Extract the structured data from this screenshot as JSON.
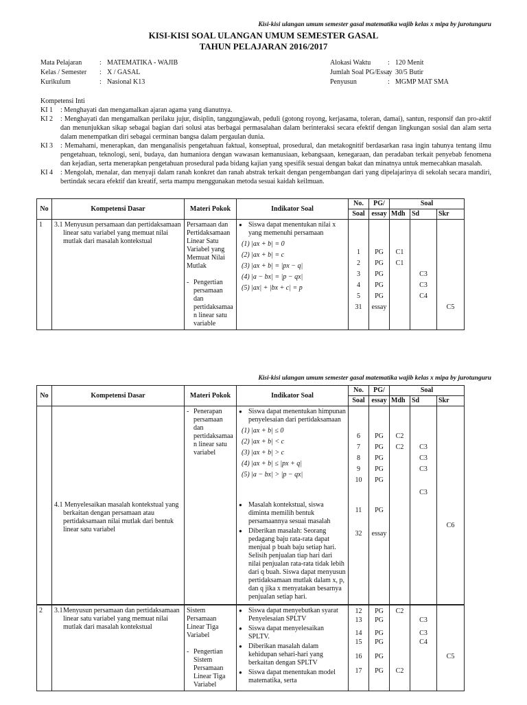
{
  "header_note": "Kisi-kisi ulangan umum semester gasal matematika wajib kelas x mipa by jurotunguru",
  "title": "KISI-KISI SOAL ULANGAN UMUM SEMESTER GASAL",
  "subtitle": "TAHUN PELAJARAN 2016/2017",
  "info_left": [
    {
      "label": "Mata Pelajaran",
      "sep": ":",
      "value": "MATEMATIKA - WAJIB"
    },
    {
      "label": "Kelas / Semester",
      "sep": ":",
      "value": "X / GASAL"
    },
    {
      "label": "Kurikulum",
      "sep": ":",
      "value": "Nasional K13"
    }
  ],
  "info_right": [
    {
      "label": "Alokasi Waktu",
      "sep": ":",
      "value": "120 Menit"
    },
    {
      "label": "Jumlah Soal PG/Essay",
      "sep": ":",
      "value": "30/5 Butir"
    },
    {
      "label": "Penyusun",
      "sep": ":",
      "value": "MGMP MAT SMA"
    }
  ],
  "ki_heading": "Kompetensi Inti",
  "ki": [
    {
      "code": "KI 1",
      "text": ": Menghayati dan mengamalkan ajaran agama yang dianutnya."
    },
    {
      "code": "KI 2",
      "text": ": Menghayati dan mengamalkan perilaku jujur, disiplin, tanggungjawab, peduli (gotong royong, kerjasama, toleran, damai), santun, responsif dan pro-aktif dan menunjukkan sikap sebagai bagian dari solusi atas berbagai permasalahan dalam berinteraksi secara efektif dengan lingkungan sosial dan alam serta dalam menempatkan diri sebagai cerminan bangsa dalam pergaulan dunia."
    },
    {
      "code": "KI 3",
      "text": ": Memahami, menerapkan, dan menganalisis pengetahuan faktual, konseptual, prosedural, dan metakognitif berdasarkan rasa ingin tahunya tentang ilmu pengetahuan, teknologi, seni, budaya, dan humaniora dengan wawasan kemanusiaan, kebangsaan, kenegaraan, dan peradaban terkait penyebab fenomena dan kejadian, serta menerapkan pengetahuan prosedural pada bidang kajian yang spesifik sesuai dengan bakat dan minatnya untuk memecahkan masalah."
    },
    {
      "code": "KI 4",
      "text": ": Mengolah, menalar, dan menyaji dalam ranah konkret dan ranah abstrak terkait dengan pengembangan dari yang dipelajarinya di sekolah secara mandiri, bertindak secara efektif dan kreatif, serta mampu menggunakan metoda sesuai kaidah keilmuan."
    }
  ],
  "table_headers": {
    "no": "No",
    "kd": "Kompetensi Dasar",
    "materi": "Materi Pokok",
    "indikator": "Indikator Soal",
    "no_soal_1": "No.",
    "no_soal_2": "Soal",
    "pg_1": "PG/",
    "pg_2": "essay",
    "soal": "Soal",
    "mdh": "Mdh",
    "sd": "Sd",
    "skr": "Skr"
  },
  "page1": {
    "no": "1",
    "kd": "3.1 Menyusun persamaan dan pertidaksamaan linear satu variabel yang memuat nilai mutlak dari masalah kontekstual",
    "materi": "Persamaan dan Pertidaksamaan Linear Satu Variabel yang Memuat Nilai Mutlak",
    "materi_sub": "Pengertian persamaan dan pertidaksamaa n linear satu variable",
    "indikator": "Siswa dapat menentukan nilai x yang memenuhi persamaan",
    "formulas": [
      "(1)  |ax + b| = 0",
      "(2)  |ax + b| = c",
      "(3)  |ax + b| = |px − q|",
      "(4)  |a − bx| = |p − qx|",
      "(5)  |ax| + |bx + c| = p"
    ],
    "items": [
      {
        "no": "1",
        "type": "PG",
        "mdh": "C1",
        "sd": "",
        "skr": ""
      },
      {
        "no": "2",
        "type": "PG",
        "mdh": "C1",
        "sd": "",
        "skr": ""
      },
      {
        "no": "3",
        "type": "PG",
        "mdh": "",
        "sd": "C3",
        "skr": ""
      },
      {
        "no": "4",
        "type": "PG",
        "mdh": "",
        "sd": "C3",
        "skr": ""
      },
      {
        "no": "5",
        "type": "PG",
        "mdh": "",
        "sd": "C4",
        "skr": ""
      },
      {
        "no": "31",
        "type": "essay",
        "mdh": "",
        "sd": "",
        "skr": "C5"
      }
    ]
  },
  "page2": {
    "materi_sub": "Penerapan persamaan dan pertidaksamaa n linear satu variabel",
    "indikator": "Siswa dapat menentukan himpunan penyelesaian dari pertidaksamaan",
    "formulas": [
      "(1) |ax + b| ≤ 0",
      "(2) |ax + b| < c",
      "(3) |ax + b| > c",
      "(4) |ax + b| ≤ |px + q|",
      "(5) |a − bx| > |p − qx|"
    ],
    "items": [
      {
        "no": "6",
        "type": "PG",
        "mdh": "C2",
        "sd": "",
        "skr": ""
      },
      {
        "no": "7",
        "type": "PG",
        "mdh": "C2",
        "sd": "C3",
        "skr": ""
      },
      {
        "no": "8",
        "type": "PG",
        "mdh": "",
        "sd": "C3",
        "skr": ""
      },
      {
        "no": "9",
        "type": "PG",
        "mdh": "",
        "sd": "C3",
        "skr": ""
      },
      {
        "no": "10",
        "type": "PG",
        "mdh": "",
        "sd": "",
        "skr": ""
      }
    ],
    "extra_sd": "C3",
    "kd2": "4.1 Menyelesaikan masalah kontekstual yang berkaitan dengan persamaan atau pertidaksamaan nilai mutlak dari bentuk linear  satu variabel",
    "indikator2": "Masalah kontekstual, siswa diminta memilih bentuk persamaannya sesuai masalah",
    "indikator3": "Diberikan masalah: Seorang pedagang baju rata-rata dapat menjual p buah baju setiap hari. Selisih penjualan tiap hari dari nilai penjualan rata-rata tidak lebih dari q buah. Siswa dapat menyusun pertidaksamaan mutlak dalam x, p, dan q jika x menyatakan besarnya penjualan setiap hari.",
    "items2": [
      {
        "no": "11",
        "type": "PG"
      },
      {
        "no": "32",
        "type": "essay"
      }
    ],
    "skr2": "C6",
    "row2": {
      "no": "2",
      "kd_num": "3.1",
      "kd": "Menyusun persamaan dan pertidaksamaan linear satu variabel yang memuat nilai mutlak dari masalah kontekstual",
      "materi": "Sistem Persamaan Linear Tiga Variabel",
      "materi_sub": "Pengertian Sistem Persamaan Linear Tiga Variabel",
      "indikator": [
        "Siswa dapat menyebutkan syarat Penyelesaian SPLTV",
        "Siswa dapat menyelesaikan SPLTV.",
        "Diberikan masalah dalam kehidupan sehari-hari yang berkaitan dengan SPLTV",
        " Siswa dapat menentukan model matematika, serta"
      ],
      "items": [
        {
          "no": "12",
          "type": "PG",
          "mdh": "C2",
          "sd": "",
          "skr": ""
        },
        {
          "no": "13",
          "type": "PG",
          "mdh": "",
          "sd": "C3",
          "skr": ""
        },
        {
          "no": "14",
          "type": "PG",
          "mdh": "",
          "sd": "C3",
          "skr": ""
        },
        {
          "no": "15",
          "type": "PG",
          "mdh": "",
          "sd": "C4",
          "skr": ""
        },
        {
          "no": "16",
          "type": "PG",
          "mdh": "",
          "sd": "",
          "skr": "C5"
        },
        {
          "no": "17",
          "type": "PG",
          "mdh": "C2",
          "sd": "",
          "skr": ""
        }
      ]
    }
  }
}
